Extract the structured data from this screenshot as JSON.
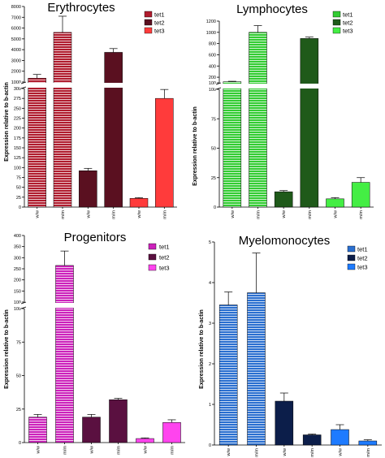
{
  "chart_data": [
    {
      "type": "bar",
      "title": "Erythrocytes",
      "ylabel": "Expression relative to b-actin",
      "legend": [
        "tet1",
        "tet2",
        "tet3"
      ],
      "colors": [
        "#b01c2e",
        "#5a1020",
        "#ff3b3b"
      ],
      "categories": [
        "w/w",
        "m/m",
        "w/w",
        "m/m",
        "w/w",
        "m/m"
      ],
      "values": [
        1350,
        5600,
        92,
        3750,
        22,
        275
      ],
      "errors": [
        350,
        1500,
        6,
        350,
        2,
        35
      ],
      "series_index": [
        0,
        0,
        1,
        1,
        2,
        2
      ],
      "striped": [
        true,
        true,
        false,
        false,
        false,
        false
      ],
      "lower_axis": {
        "range": [
          0,
          300
        ],
        "ticks": [
          "0",
          "25",
          "50",
          "75",
          "100",
          "125",
          "150",
          "175",
          "200",
          "225",
          "250",
          "275",
          "300"
        ]
      },
      "upper_axis": {
        "range": [
          1000,
          8000
        ],
        "ticks": [
          "1000",
          "2000",
          "3000",
          "4000",
          "5000",
          "6000",
          "7000",
          "8000"
        ]
      }
    },
    {
      "type": "bar",
      "title": "Lymphocytes",
      "ylabel": "Expression relative to b-actin",
      "legend": [
        "tet1",
        "tet2",
        "tet3"
      ],
      "colors": [
        "#33cc33",
        "#1f5a1a",
        "#44ee44"
      ],
      "categories": [
        "w/w",
        "m/m",
        "w/w",
        "m/m",
        "w/w",
        "m/m"
      ],
      "values": [
        120,
        1000,
        13,
        890,
        7,
        21
      ],
      "errors": [
        8,
        120,
        1,
        25,
        1,
        4
      ],
      "series_index": [
        0,
        0,
        1,
        1,
        2,
        2
      ],
      "striped": [
        true,
        true,
        false,
        false,
        false,
        false
      ],
      "lower_axis": {
        "range": [
          0,
          100
        ],
        "ticks": [
          "0",
          "25",
          "50",
          "75",
          "100"
        ]
      },
      "upper_axis": {
        "range": [
          100,
          1200
        ],
        "ticks": [
          "100",
          "200",
          "400",
          "600",
          "800",
          "1000",
          "1200"
        ]
      }
    },
    {
      "type": "bar",
      "title": "Progenitors",
      "ylabel": "Expression relative to b-actin",
      "legend": [
        "tet1",
        "tet2",
        "tet3"
      ],
      "colors": [
        "#cc22bb",
        "#5a1040",
        "#ff44ee"
      ],
      "categories": [
        "w/w",
        "m/m",
        "w/w",
        "m/m",
        "w/w",
        "m/m"
      ],
      "values": [
        19,
        265,
        19,
        32,
        3,
        15
      ],
      "errors": [
        2,
        65,
        2,
        1,
        0.5,
        2
      ],
      "series_index": [
        0,
        0,
        1,
        1,
        2,
        2
      ],
      "striped": [
        true,
        true,
        false,
        false,
        false,
        false
      ],
      "lower_axis": {
        "range": [
          0,
          100
        ],
        "ticks": [
          "0",
          "25",
          "50",
          "75",
          "100"
        ]
      },
      "upper_axis": {
        "range": [
          100,
          400
        ],
        "ticks": [
          "100",
          "150",
          "200",
          "250",
          "300",
          "350",
          "400"
        ]
      }
    },
    {
      "type": "bar",
      "title": "Myelomonocytes",
      "ylabel": "Expression relative to b-actin",
      "legend": [
        "tet1",
        "tet2",
        "tet3"
      ],
      "colors": [
        "#2a6fd0",
        "#0c1e4a",
        "#1e7bff"
      ],
      "categories": [
        "w/w",
        "m/m",
        "w/w",
        "m/m",
        "w/w",
        "m/m"
      ],
      "values": [
        3.45,
        3.75,
        1.08,
        0.25,
        0.38,
        0.1
      ],
      "errors": [
        0.32,
        0.98,
        0.2,
        0.02,
        0.12,
        0.03
      ],
      "series_index": [
        0,
        0,
        1,
        1,
        2,
        2
      ],
      "striped": [
        true,
        true,
        false,
        false,
        false,
        false
      ],
      "axis": {
        "range": [
          0,
          5
        ],
        "ticks": [
          "0",
          "1",
          "2",
          "3",
          "4",
          "5"
        ]
      }
    }
  ]
}
